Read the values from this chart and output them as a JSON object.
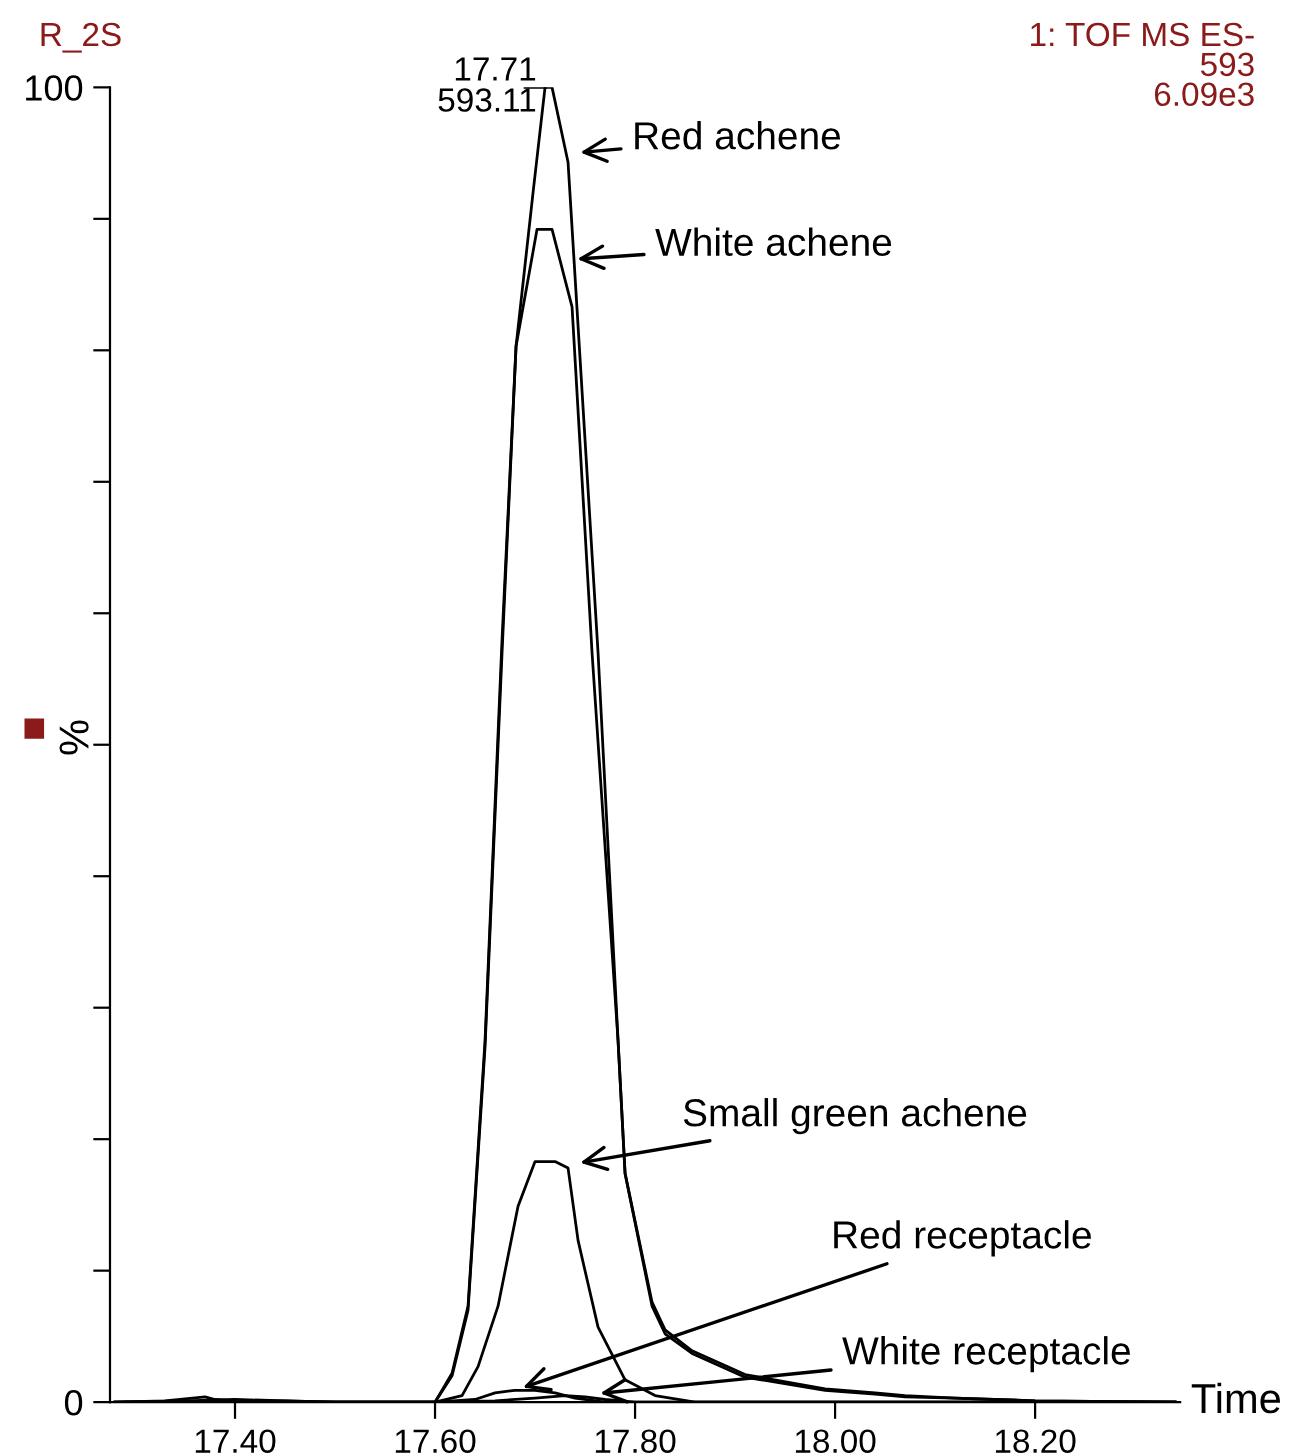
{
  "chart_data": {
    "type": "line",
    "title": "R_2S",
    "subtitle": "1: TOF MS ES-\n593\n6.09e3",
    "xlabel": "Time",
    "ylabel": "%",
    "xlim": [
      17.275,
      18.345
    ],
    "ylim": [
      0,
      100
    ],
    "xticks": [
      {
        "value": 17.4,
        "label": "17.40"
      },
      {
        "value": 17.6,
        "label": "17.60"
      },
      {
        "value": 17.8,
        "label": "17.80"
      },
      {
        "value": 18.0,
        "label": "18.00"
      },
      {
        "value": 18.2,
        "label": "18.20"
      }
    ],
    "yticks": [
      0,
      {
        "value": 10,
        "label": null
      },
      {
        "value": 20,
        "label": null
      },
      {
        "value": 30,
        "label": null
      },
      {
        "value": 40,
        "label": null
      },
      {
        "value": 50,
        "label": null
      },
      {
        "value": 60,
        "label": null
      },
      {
        "value": 70,
        "label": null
      },
      {
        "value": 80,
        "label": null
      },
      {
        "value": 90,
        "label": null
      },
      100
    ],
    "grid": false,
    "legend": false,
    "marker": "none",
    "line_style": "solid",
    "series": [
      {
        "color": "#000000",
        "x": [
          17.28,
          17.33,
          17.37,
          17.38,
          17.4,
          17.45,
          17.5,
          17.55,
          17.6,
          17.617,
          17.633,
          17.65,
          17.667,
          17.681,
          17.698,
          17.71,
          17.717,
          17.733,
          17.763,
          17.783,
          17.79,
          17.817,
          17.83,
          17.857,
          17.91,
          17.99,
          18.04,
          18.07,
          18.12,
          18.2,
          18.34
        ],
        "values": [
          0,
          0.1,
          0.4,
          0.2,
          0.1,
          0.1,
          0,
          0,
          0,
          2.2,
          7.3,
          27.5,
          58,
          80.3,
          92,
          100,
          100,
          94.3,
          57,
          27.5,
          17.4,
          7.3,
          5.2,
          3.7,
          1.9,
          0.9,
          0.6,
          0.4,
          0.3,
          0.1,
          0
        ]
      },
      {
        "color": "#000000",
        "x": [
          17.28,
          17.35,
          17.4,
          17.45,
          17.5,
          17.55,
          17.6,
          17.617,
          17.633,
          17.65,
          17.667,
          17.681,
          17.702,
          17.717,
          17.737,
          17.757,
          17.783,
          17.79,
          17.817,
          17.83,
          17.857,
          17.91,
          17.99,
          18.04,
          18.07,
          18.12,
          18.2,
          18.34
        ],
        "values": [
          0,
          0.1,
          0.2,
          0.1,
          0,
          0,
          0,
          2,
          7,
          27,
          57,
          80.3,
          89.2,
          89.2,
          83.3,
          57,
          27.5,
          17.4,
          7.6,
          5.5,
          3.9,
          2.1,
          1,
          0.7,
          0.5,
          0.3,
          0.1,
          0
        ]
      },
      {
        "color": "#000000",
        "x": [
          17.28,
          17.5,
          17.6,
          17.627,
          17.643,
          17.663,
          17.683,
          17.7,
          17.72,
          17.733,
          17.743,
          17.763,
          17.79,
          17.82,
          17.86,
          18.34
        ],
        "values": [
          0,
          0,
          0,
          0.5,
          2.7,
          7.3,
          14.9,
          18.3,
          18.3,
          17.8,
          12.3,
          5.7,
          1.7,
          0.5,
          0,
          0
        ]
      },
      {
        "color": "#000000",
        "x": [
          17.29,
          17.6,
          17.64,
          17.66,
          17.68,
          17.7,
          17.72,
          17.74,
          17.77,
          18.34
        ],
        "values": [
          0,
          0,
          0.2,
          0.7,
          0.9,
          0.9,
          0.7,
          0.3,
          0,
          0
        ]
      },
      {
        "color": "#000000",
        "x": [
          17.28,
          17.6,
          17.66,
          17.7,
          17.73,
          17.75,
          17.77,
          17.8,
          18.34
        ],
        "values": [
          0,
          0,
          0.1,
          0.3,
          0.5,
          0.4,
          0.2,
          0,
          0
        ]
      }
    ],
    "annotations": [
      {
        "text": "17.71\n593.11",
        "x": 17.71,
        "y": 100
      },
      {
        "text": "Red achene",
        "x": 17.737,
        "y": 95
      },
      {
        "text": "White achene",
        "x": 17.734,
        "y": 86.9
      },
      {
        "text": "Small green achene",
        "x": 17.737,
        "y": 18.1
      },
      {
        "text": "Red receptacle",
        "x": 17.68,
        "y": 0.9
      },
      {
        "text": "White receptacle",
        "x": 17.757,
        "y": 0.6
      }
    ]
  }
}
